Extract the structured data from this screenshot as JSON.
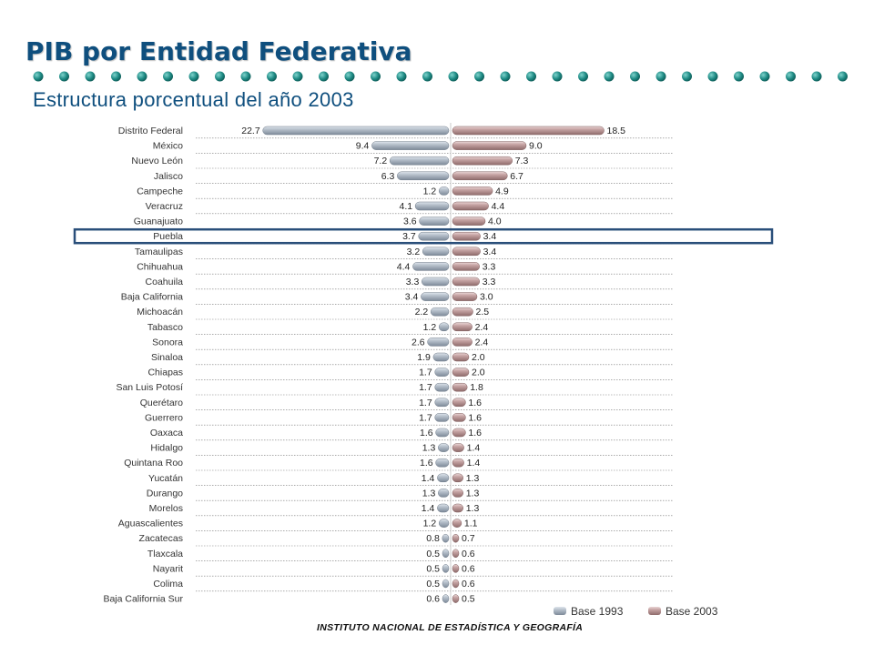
{
  "header": {
    "title": "PIB por Entidad Federativa",
    "subtitle": "Estructura porcentual del año 2003"
  },
  "footer": {
    "institution": "INSTITUTO NACIONAL DE ESTADÍSTICA Y GEOGRAFÍA"
  },
  "colors": {
    "title": "#0f4f7e",
    "dots": "#1e8a84",
    "base_1993": "#9aa6b4",
    "base_2003": "#b08e8e",
    "highlight": "#2a4f7a"
  },
  "chart_data": {
    "type": "bar",
    "orientation": "horizontal-back-to-back",
    "categories": [
      "Distrito Federal",
      "México",
      "Nuevo León",
      "Jalisco",
      "Campeche",
      "Veracruz",
      "Guanajuato",
      "Puebla",
      "Tamaulipas",
      "Chihuahua",
      "Coahuila",
      "Baja California",
      "Michoacán",
      "Tabasco",
      "Sonora",
      "Sinaloa",
      "Chiapas",
      "San Luis Potosí",
      "Querétaro",
      "Guerrero",
      "Oaxaca",
      "Hidalgo",
      "Quintana Roo",
      "Yucatán",
      "Durango",
      "Morelos",
      "Aguascalientes",
      "Zacatecas",
      "Tlaxcala",
      "Nayarit",
      "Colima",
      "Baja California Sur"
    ],
    "series": [
      {
        "name": "Base 1993",
        "side": "left",
        "values": [
          22.7,
          9.4,
          7.2,
          6.3,
          1.2,
          4.1,
          3.6,
          3.7,
          3.2,
          4.4,
          3.3,
          3.4,
          2.2,
          1.2,
          2.6,
          1.9,
          1.7,
          1.7,
          1.7,
          1.7,
          1.6,
          1.3,
          1.6,
          1.4,
          1.3,
          1.4,
          1.2,
          0.8,
          0.5,
          0.5,
          0.5,
          0.6
        ]
      },
      {
        "name": "Base 2003",
        "side": "right",
        "values": [
          18.5,
          9.0,
          7.3,
          6.7,
          4.9,
          4.4,
          4.0,
          3.4,
          3.4,
          3.3,
          3.3,
          3.0,
          2.5,
          2.4,
          2.4,
          2.0,
          2.0,
          1.8,
          1.6,
          1.6,
          1.6,
          1.4,
          1.4,
          1.3,
          1.3,
          1.3,
          1.1,
          0.7,
          0.6,
          0.6,
          0.6,
          0.5
        ]
      }
    ],
    "value_labels": {
      "left": [
        "22.7",
        "9.4",
        "7.2",
        "6.3",
        "1.2",
        "4.1",
        "3.6",
        "3.7",
        "3.2",
        "4.4",
        "3.3",
        "3.4",
        "2.2",
        "1.2",
        "2.6",
        "1.9",
        "1.7",
        "1.7",
        "1.7",
        "1.7",
        "1.6",
        "1.3",
        "1.6",
        "1.4",
        "1.3",
        "1.4",
        "1.2",
        "0.8",
        "0.5",
        "0.5",
        "0.5",
        "0.6"
      ],
      "right": [
        "18.5",
        "9.0",
        "7.3",
        "6.7",
        "4.9",
        "4.4",
        "4.0",
        "3.4",
        "3.4",
        "3.3",
        "3.3",
        "3.0",
        "2.5",
        "2.4",
        "2.4",
        "2.0",
        "2.0",
        "1.8",
        "1.6",
        "1.6",
        "1.6",
        "1.4",
        "1.4",
        "1.3",
        "1.3",
        "1.3",
        "1.1",
        "0.7",
        "0.6",
        "0.6",
        "0.6",
        "0.5"
      ]
    },
    "highlighted_category": "Puebla",
    "legend": [
      "Base 1993",
      "Base 2003"
    ],
    "legend_position": "bottom-right"
  }
}
